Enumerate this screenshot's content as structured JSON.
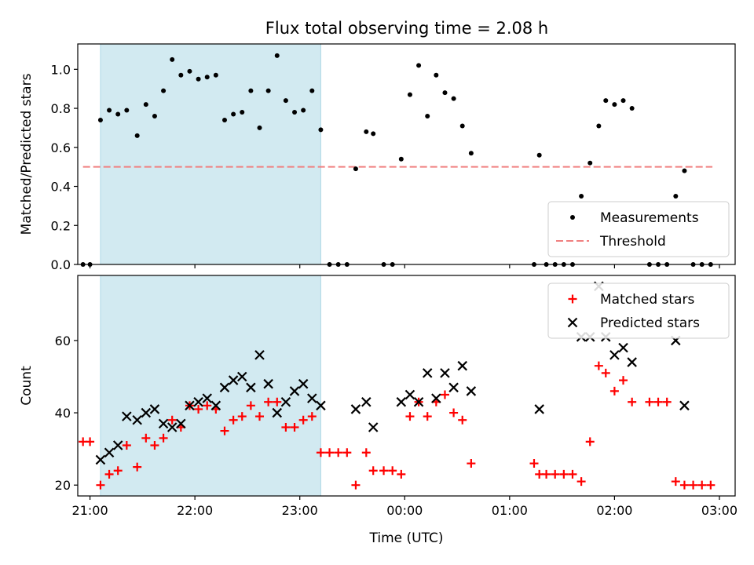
{
  "figure": {
    "title": "Flux total observing time = 2.08 h"
  },
  "chart_data": [
    {
      "type": "scatter",
      "name": "ratio",
      "ylabel": "Matched/Predicted stars",
      "xlabel": "",
      "ylim": [
        0,
        1.13
      ],
      "xlim": [
        "20:53",
        "03:09"
      ],
      "yticks": [
        "0.0",
        "0.2",
        "0.4",
        "0.6",
        "0.8",
        "1.0"
      ],
      "ytick_values": [
        0,
        0.2,
        0.4,
        0.6,
        0.8,
        1.0
      ],
      "xticks": [
        "21:00",
        "22:00",
        "23:00",
        "00:00",
        "01:00",
        "02:00",
        "03:00"
      ],
      "shaded_span": [
        "21:06",
        "23:12"
      ],
      "shaded_color": "#add8e6",
      "threshold": {
        "value": 0.5,
        "x": [
          "20:56",
          "02:56"
        ],
        "color": "#f08080"
      },
      "legend": {
        "placement": "lower right",
        "entries": [
          "Measurements",
          "Threshold"
        ]
      },
      "series": [
        {
          "name": "Measurements",
          "marker": "dot",
          "color": "#000000",
          "points": [
            [
              "20:56",
              0
            ],
            [
              "21:00",
              0
            ],
            [
              "21:06",
              0.74
            ],
            [
              "21:11",
              0.79
            ],
            [
              "21:16",
              0.77
            ],
            [
              "21:21",
              0.79
            ],
            [
              "21:27",
              0.66
            ],
            [
              "21:32",
              0.82
            ],
            [
              "21:37",
              0.76
            ],
            [
              "21:42",
              0.89
            ],
            [
              "21:47",
              1.05
            ],
            [
              "21:52",
              0.97
            ],
            [
              "21:57",
              0.99
            ],
            [
              "22:02",
              0.95
            ],
            [
              "22:07",
              0.96
            ],
            [
              "22:12",
              0.97
            ],
            [
              "22:17",
              0.74
            ],
            [
              "22:22",
              0.77
            ],
            [
              "22:27",
              0.78
            ],
            [
              "22:32",
              0.89
            ],
            [
              "22:37",
              0.7
            ],
            [
              "22:42",
              0.89
            ],
            [
              "22:47",
              1.07
            ],
            [
              "22:52",
              0.84
            ],
            [
              "22:57",
              0.78
            ],
            [
              "23:02",
              0.79
            ],
            [
              "23:07",
              0.89
            ],
            [
              "23:12",
              0.69
            ],
            [
              "23:17",
              0
            ],
            [
              "23:22",
              0
            ],
            [
              "23:27",
              0
            ],
            [
              "23:32",
              0.49
            ],
            [
              "23:38",
              0.68
            ],
            [
              "23:42",
              0.67
            ],
            [
              "23:48",
              0
            ],
            [
              "23:53",
              0
            ],
            [
              "23:58",
              0.54
            ],
            [
              "00:03",
              0.87
            ],
            [
              "00:08",
              1.02
            ],
            [
              "00:13",
              0.76
            ],
            [
              "00:18",
              0.97
            ],
            [
              "00:23",
              0.88
            ],
            [
              "00:28",
              0.85
            ],
            [
              "00:33",
              0.71
            ],
            [
              "00:38",
              0.57
            ],
            [
              "01:14",
              0
            ],
            [
              "01:17",
              0.56
            ],
            [
              "01:21",
              0
            ],
            [
              "01:26",
              0
            ],
            [
              "01:31",
              0
            ],
            [
              "01:36",
              0
            ],
            [
              "01:41",
              0.35
            ],
            [
              "01:46",
              0.52
            ],
            [
              "01:51",
              0.71
            ],
            [
              "01:55",
              0.84
            ],
            [
              "02:00",
              0.82
            ],
            [
              "02:05",
              0.84
            ],
            [
              "02:10",
              0.8
            ],
            [
              "02:20",
              0
            ],
            [
              "02:25",
              0
            ],
            [
              "02:30",
              0
            ],
            [
              "02:35",
              0.35
            ],
            [
              "02:40",
              0.48
            ],
            [
              "02:45",
              0
            ],
            [
              "02:50",
              0
            ],
            [
              "02:55",
              0
            ]
          ]
        }
      ]
    },
    {
      "type": "scatter",
      "name": "counts",
      "ylabel": "Count",
      "xlabel": "Time (UTC)",
      "ylim": [
        17,
        78
      ],
      "xlim": [
        "20:53",
        "03:09"
      ],
      "yticks": [
        "20",
        "40",
        "60"
      ],
      "ytick_values": [
        20,
        40,
        60
      ],
      "xticks": [
        "21:00",
        "22:00",
        "23:00",
        "00:00",
        "01:00",
        "02:00",
        "03:00"
      ],
      "shaded_span": [
        "21:06",
        "23:12"
      ],
      "shaded_color": "#add8e6",
      "legend": {
        "placement": "upper right",
        "entries": [
          "Matched stars",
          "Predicted stars"
        ]
      },
      "series": [
        {
          "name": "Matched stars",
          "marker": "plus",
          "color": "#ff0000",
          "points": [
            [
              "20:56",
              32
            ],
            [
              "21:00",
              32
            ],
            [
              "21:06",
              20
            ],
            [
              "21:11",
              23
            ],
            [
              "21:16",
              24
            ],
            [
              "21:21",
              31
            ],
            [
              "21:27",
              25
            ],
            [
              "21:32",
              33
            ],
            [
              "21:37",
              31
            ],
            [
              "21:42",
              33
            ],
            [
              "21:47",
              38
            ],
            [
              "21:52",
              36
            ],
            [
              "21:57",
              42
            ],
            [
              "22:02",
              41
            ],
            [
              "22:07",
              42
            ],
            [
              "22:12",
              41
            ],
            [
              "22:17",
              35
            ],
            [
              "22:22",
              38
            ],
            [
              "22:27",
              39
            ],
            [
              "22:32",
              42
            ],
            [
              "22:37",
              39
            ],
            [
              "22:42",
              43
            ],
            [
              "22:47",
              43
            ],
            [
              "22:52",
              36
            ],
            [
              "22:57",
              36
            ],
            [
              "23:02",
              38
            ],
            [
              "23:07",
              39
            ],
            [
              "23:12",
              29
            ],
            [
              "23:17",
              29
            ],
            [
              "23:22",
              29
            ],
            [
              "23:27",
              29
            ],
            [
              "23:32",
              20
            ],
            [
              "23:38",
              29
            ],
            [
              "23:42",
              24
            ],
            [
              "23:48",
              24
            ],
            [
              "23:53",
              24
            ],
            [
              "23:58",
              23
            ],
            [
              "00:03",
              39
            ],
            [
              "00:08",
              43
            ],
            [
              "00:13",
              39
            ],
            [
              "00:18",
              43
            ],
            [
              "00:23",
              45
            ],
            [
              "00:28",
              40
            ],
            [
              "00:33",
              38
            ],
            [
              "00:38",
              26
            ],
            [
              "01:14",
              26
            ],
            [
              "01:17",
              23
            ],
            [
              "01:21",
              23
            ],
            [
              "01:26",
              23
            ],
            [
              "01:31",
              23
            ],
            [
              "01:36",
              23
            ],
            [
              "01:41",
              21
            ],
            [
              "01:46",
              32
            ],
            [
              "01:51",
              53
            ],
            [
              "01:55",
              51
            ],
            [
              "02:00",
              46
            ],
            [
              "02:05",
              49
            ],
            [
              "02:10",
              43
            ],
            [
              "02:20",
              43
            ],
            [
              "02:25",
              43
            ],
            [
              "02:30",
              43
            ],
            [
              "02:35",
              21
            ],
            [
              "02:40",
              20
            ],
            [
              "02:45",
              20
            ],
            [
              "02:50",
              20
            ],
            [
              "02:55",
              20
            ]
          ]
        },
        {
          "name": "Predicted stars",
          "marker": "x",
          "color": "#000000",
          "points": [
            [
              "21:06",
              27
            ],
            [
              "21:11",
              29
            ],
            [
              "21:16",
              31
            ],
            [
              "21:21",
              39
            ],
            [
              "21:27",
              38
            ],
            [
              "21:32",
              40
            ],
            [
              "21:37",
              41
            ],
            [
              "21:42",
              37
            ],
            [
              "21:47",
              36
            ],
            [
              "21:52",
              37
            ],
            [
              "21:57",
              42
            ],
            [
              "22:02",
              43
            ],
            [
              "22:07",
              44
            ],
            [
              "22:12",
              42
            ],
            [
              "22:17",
              47
            ],
            [
              "22:22",
              49
            ],
            [
              "22:27",
              50
            ],
            [
              "22:32",
              47
            ],
            [
              "22:37",
              56
            ],
            [
              "22:42",
              48
            ],
            [
              "22:47",
              40
            ],
            [
              "22:52",
              43
            ],
            [
              "22:57",
              46
            ],
            [
              "23:02",
              48
            ],
            [
              "23:07",
              44
            ],
            [
              "23:12",
              42
            ],
            [
              "23:32",
              41
            ],
            [
              "23:38",
              43
            ],
            [
              "23:42",
              36
            ],
            [
              "23:58",
              43
            ],
            [
              "00:03",
              45
            ],
            [
              "00:08",
              43
            ],
            [
              "00:13",
              51
            ],
            [
              "00:18",
              44
            ],
            [
              "00:23",
              51
            ],
            [
              "00:28",
              47
            ],
            [
              "00:33",
              53
            ],
            [
              "00:38",
              46
            ],
            [
              "01:17",
              41
            ],
            [
              "01:41",
              61
            ],
            [
              "01:46",
              61
            ],
            [
              "01:51",
              75
            ],
            [
              "01:55",
              61
            ],
            [
              "02:00",
              56
            ],
            [
              "02:05",
              58
            ],
            [
              "02:10",
              54
            ],
            [
              "02:35",
              60
            ],
            [
              "02:40",
              42
            ]
          ]
        }
      ]
    }
  ]
}
